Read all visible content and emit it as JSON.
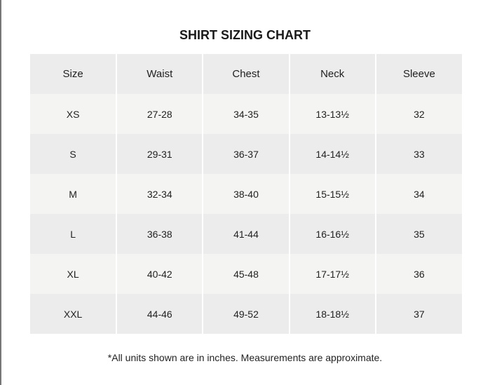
{
  "title": "SHIRT SIZING CHART",
  "table": {
    "headers": [
      "Size",
      "Waist",
      "Chest",
      "Neck",
      "Sleeve"
    ],
    "rows": [
      [
        "XS",
        "27-28",
        "34-35",
        "13-13½",
        "32"
      ],
      [
        "S",
        "29-31",
        "36-37",
        "14-14½",
        "33"
      ],
      [
        "M",
        "32-34",
        "38-40",
        "15-15½",
        "34"
      ],
      [
        "L",
        "36-38",
        "41-44",
        "16-16½",
        "35"
      ],
      [
        "XL",
        "40-42",
        "45-48",
        "17-17½",
        "36"
      ],
      [
        "XXL",
        "44-46",
        "49-52",
        "18-18½",
        "37"
      ]
    ]
  },
  "footnote": "*All units shown are in inches. Measurements are approximate.",
  "colors": {
    "header_bg": "#ececec",
    "row_light": "#f4f4f2",
    "row_dark": "#ececec"
  }
}
